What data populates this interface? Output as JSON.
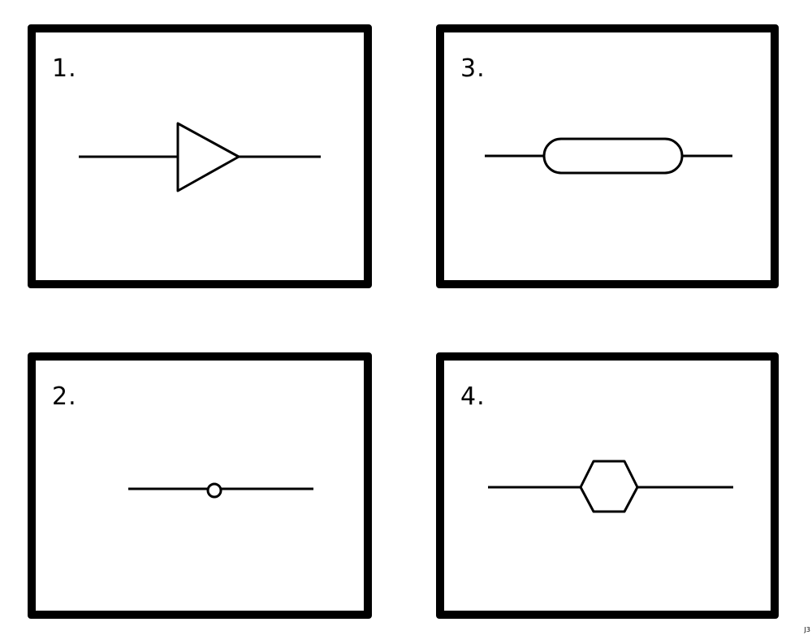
{
  "panels": [
    {
      "id": "panel-1",
      "label": "1.",
      "symbol": "triangle"
    },
    {
      "id": "panel-2",
      "label": "2.",
      "symbol": "circle"
    },
    {
      "id": "panel-3",
      "label": "3.",
      "symbol": "rounded-rectangle"
    },
    {
      "id": "panel-4",
      "label": "4.",
      "symbol": "hexagon"
    }
  ],
  "corner_mark": "J3",
  "colors": {
    "line": "#000000",
    "background": "#ffffff"
  }
}
